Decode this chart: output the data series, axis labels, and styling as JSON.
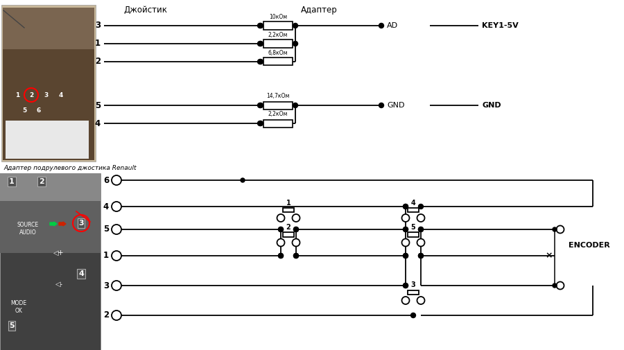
{
  "bg_color": "#f0f0f0",
  "title_joystick": "Джойстик",
  "title_adapter": "Адаптер",
  "caption": "Адаптер подрулевого джостика Renault",
  "res_top_labels": [
    "10кОм",
    "2,2кОм",
    "6,8кОм"
  ],
  "res_bot_labels": [
    "14,7кОм",
    "2,2кОм"
  ],
  "label_ad": "AD",
  "label_key15v": "KEY1-5V",
  "label_gnd1": "GND",
  "label_gnd2": "GND",
  "label_encoder": "ENCODER",
  "top_pins": [
    "3",
    "1",
    "2"
  ],
  "bot_pins": [
    "5",
    "4"
  ],
  "sw_pin_labels": [
    "6",
    "4",
    "5",
    "1",
    "3",
    "2"
  ],
  "sw_labels": [
    "1",
    "2",
    "3",
    "4",
    "5"
  ]
}
